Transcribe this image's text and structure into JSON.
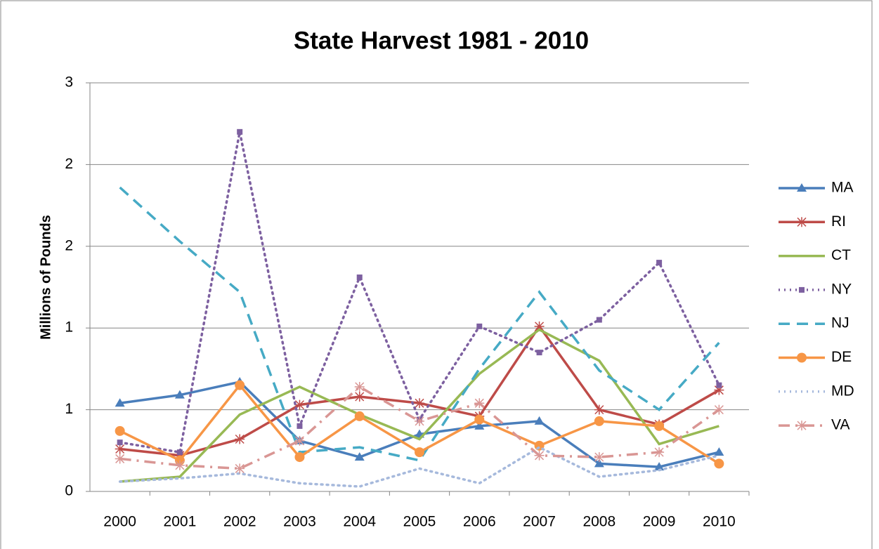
{
  "chart_data": {
    "type": "line",
    "title": "State Harvest 1981 - 2010",
    "y_label": "Millions of Pounds",
    "categories": [
      "2000",
      "2001",
      "2002",
      "2003",
      "2004",
      "2005",
      "2006",
      "2007",
      "2008",
      "2009",
      "2010"
    ],
    "ylim": [
      0,
      2.5
    ],
    "yticks": [
      0,
      {
        "value": 0.5,
        "label": "1"
      },
      1,
      {
        "value": 1.5,
        "label": "2"
      },
      2,
      {
        "value": 2.5,
        "label": "3"
      }
    ],
    "grid": true,
    "legend": "right",
    "series": [
      {
        "name": "MA",
        "color": "#4a7ebb",
        "marker": "triangle",
        "dash": "solid",
        "values": [
          0.54,
          0.59,
          0.67,
          0.31,
          0.21,
          0.35,
          0.4,
          0.43,
          0.17,
          0.15,
          0.24
        ]
      },
      {
        "name": "RI",
        "color": "#be4b48",
        "marker": "star",
        "dash": "solid",
        "values": [
          0.26,
          0.22,
          0.32,
          0.53,
          0.58,
          0.54,
          0.46,
          1.01,
          0.5,
          0.41,
          0.62
        ]
      },
      {
        "name": "CT",
        "color": "#98b954",
        "marker": "none",
        "dash": "solid",
        "values": [
          0.06,
          0.09,
          0.47,
          0.64,
          0.47,
          0.32,
          0.72,
          0.99,
          0.8,
          0.29,
          0.4
        ]
      },
      {
        "name": "NY",
        "color": "#7d60a0",
        "marker": "square",
        "dash": "dot",
        "values": [
          0.3,
          0.24,
          2.2,
          0.4,
          1.31,
          0.44,
          1.01,
          0.85,
          1.05,
          1.4,
          0.65
        ]
      },
      {
        "name": "NJ",
        "color": "#46aac5",
        "marker": "none",
        "dash": "dash",
        "values": [
          1.86,
          1.53,
          1.22,
          0.24,
          0.27,
          0.19,
          0.75,
          1.22,
          0.74,
          0.5,
          0.91
        ]
      },
      {
        "name": "DE",
        "color": "#f79646",
        "marker": "circle",
        "dash": "solid",
        "values": [
          0.37,
          0.19,
          0.65,
          0.21,
          0.46,
          0.24,
          0.44,
          0.28,
          0.43,
          0.4,
          0.17
        ]
      },
      {
        "name": "MD",
        "color": "#a6b9dc",
        "marker": "none",
        "dash": "dot",
        "values": [
          0.06,
          0.08,
          0.11,
          0.05,
          0.03,
          0.14,
          0.05,
          0.27,
          0.09,
          0.13,
          0.22
        ]
      },
      {
        "name": "VA",
        "color": "#d99694",
        "marker": "star",
        "dash": "dashdot",
        "values": [
          0.2,
          0.16,
          0.14,
          0.31,
          0.64,
          0.43,
          0.54,
          0.22,
          0.21,
          0.24,
          0.5
        ]
      }
    ]
  }
}
